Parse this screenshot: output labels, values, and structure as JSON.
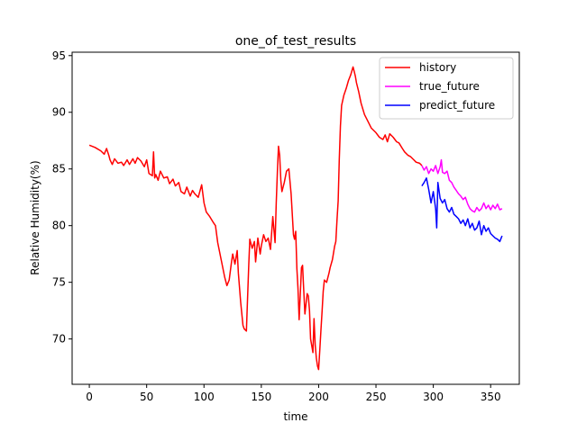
{
  "chart_data": {
    "type": "line",
    "title": "one_of_test_results",
    "xlabel": "time",
    "ylabel": "Relative Humidity(%)",
    "xlim": [
      -15,
      375
    ],
    "ylim": [
      66,
      95.3
    ],
    "xticks": [
      0,
      50,
      100,
      150,
      200,
      250,
      300,
      350
    ],
    "yticks": [
      70,
      75,
      80,
      85,
      90,
      95
    ],
    "grid": false,
    "legend_position": "top-right",
    "series": [
      {
        "name": "history",
        "color": "#ff0000",
        "x": [
          0,
          5,
          10,
          13,
          15,
          17,
          18,
          20,
          22,
          25,
          28,
          30,
          33,
          35,
          38,
          40,
          42,
          45,
          48,
          50,
          52,
          55,
          56,
          57,
          58,
          60,
          62,
          65,
          68,
          70,
          73,
          75,
          78,
          80,
          83,
          85,
          88,
          90,
          92,
          95,
          98,
          100,
          102,
          105,
          108,
          110,
          112,
          115,
          118,
          120,
          122,
          124,
          125,
          127,
          129,
          130,
          132,
          134,
          135,
          137,
          139,
          140,
          142,
          144,
          145,
          147,
          149,
          150,
          152,
          154,
          156,
          158,
          160,
          162,
          163,
          164,
          165,
          166,
          167,
          168,
          170,
          172,
          174,
          176,
          178,
          179,
          180,
          181,
          182,
          183,
          185,
          186,
          187,
          188,
          190,
          191,
          192,
          193,
          195,
          196,
          197,
          198,
          199,
          200,
          201,
          202,
          203,
          204,
          205,
          207,
          209,
          210,
          212,
          214,
          215,
          216,
          217,
          218,
          219,
          220,
          222,
          224,
          226,
          228,
          230,
          231,
          232,
          233,
          235,
          237,
          240,
          243,
          246,
          250,
          253,
          256,
          258,
          260,
          262,
          265,
          268,
          270,
          273,
          275,
          278,
          280,
          283,
          285,
          288,
          290
        ],
        "values": [
          87.1,
          86.9,
          86.6,
          86.3,
          86.8,
          86.2,
          85.8,
          85.4,
          85.9,
          85.5,
          85.6,
          85.3,
          85.8,
          85.4,
          85.9,
          85.5,
          86.0,
          85.7,
          85.2,
          85.8,
          84.6,
          84.4,
          86.5,
          84.2,
          84.5,
          84.0,
          84.8,
          84.2,
          84.3,
          83.7,
          84.1,
          83.5,
          83.8,
          83.0,
          82.8,
          83.4,
          82.6,
          83.1,
          82.8,
          82.5,
          83.6,
          82.0,
          81.2,
          80.8,
          80.3,
          80.0,
          78.5,
          77.0,
          75.5,
          74.7,
          75.2,
          76.8,
          77.5,
          76.6,
          77.8,
          75.8,
          73.2,
          71.2,
          70.9,
          70.7,
          76.5,
          78.8,
          78.0,
          78.6,
          76.8,
          78.9,
          77.5,
          78.2,
          79.2,
          78.6,
          78.9,
          77.9,
          80.8,
          78.5,
          82.0,
          84.8,
          87.0,
          86.2,
          84.0,
          83.0,
          83.8,
          84.8,
          85.0,
          82.8,
          79.2,
          78.8,
          79.5,
          76.2,
          74.5,
          71.7,
          76.3,
          76.5,
          74.3,
          72.2,
          74.0,
          73.8,
          72.5,
          70.0,
          68.8,
          71.8,
          69.5,
          68.3,
          67.6,
          67.3,
          69.0,
          70.8,
          72.5,
          74.2,
          75.2,
          75.0,
          75.8,
          76.3,
          77.0,
          78.2,
          78.6,
          80.5,
          82.2,
          85.8,
          88.8,
          90.6,
          91.5,
          92.1,
          92.8,
          93.3,
          94.0,
          93.6,
          93.2,
          92.6,
          91.8,
          90.8,
          89.8,
          89.2,
          88.6,
          88.2,
          87.8,
          87.6,
          88.0,
          87.4,
          88.1,
          87.8,
          87.4,
          87.3,
          86.8,
          86.5,
          86.2,
          86.1,
          85.8,
          85.6,
          85.5,
          85.3
        ]
      },
      {
        "name": "true_future",
        "color": "#ff00ff",
        "x": [
          290,
          292,
          294,
          296,
          298,
          300,
          302,
          304,
          306,
          307,
          308,
          310,
          312,
          314,
          316,
          318,
          320,
          322,
          324,
          326,
          328,
          330,
          332,
          334,
          336,
          338,
          340,
          342,
          344,
          346,
          348,
          350,
          352,
          354,
          356,
          358,
          360
        ],
        "values": [
          85.3,
          84.9,
          85.2,
          84.6,
          85.0,
          84.8,
          85.3,
          84.6,
          85.2,
          85.8,
          84.7,
          84.6,
          84.8,
          84.0,
          83.8,
          83.4,
          83.1,
          82.8,
          82.6,
          82.3,
          82.5,
          81.9,
          81.5,
          81.3,
          81.2,
          81.6,
          81.3,
          81.5,
          82.0,
          81.5,
          81.8,
          81.4,
          81.8,
          81.5,
          81.9,
          81.4,
          81.5
        ]
      },
      {
        "name": "predict_future",
        "color": "#0000ff",
        "x": [
          290,
          292,
          294,
          296,
          298,
          300,
          302,
          303,
          304,
          306,
          308,
          310,
          312,
          314,
          316,
          318,
          320,
          322,
          324,
          326,
          328,
          330,
          332,
          334,
          336,
          338,
          340,
          342,
          344,
          346,
          348,
          350,
          352,
          354,
          356,
          358,
          360
        ],
        "values": [
          83.5,
          83.8,
          84.2,
          83.2,
          82.0,
          83.0,
          81.5,
          79.8,
          83.8,
          82.4,
          82.0,
          82.3,
          81.5,
          81.2,
          81.6,
          81.0,
          80.8,
          80.6,
          80.2,
          80.5,
          80.0,
          80.6,
          79.8,
          80.2,
          79.6,
          79.8,
          80.4,
          79.2,
          80.0,
          79.5,
          79.8,
          79.3,
          79.1,
          78.9,
          78.8,
          78.6,
          79.1
        ]
      }
    ]
  }
}
